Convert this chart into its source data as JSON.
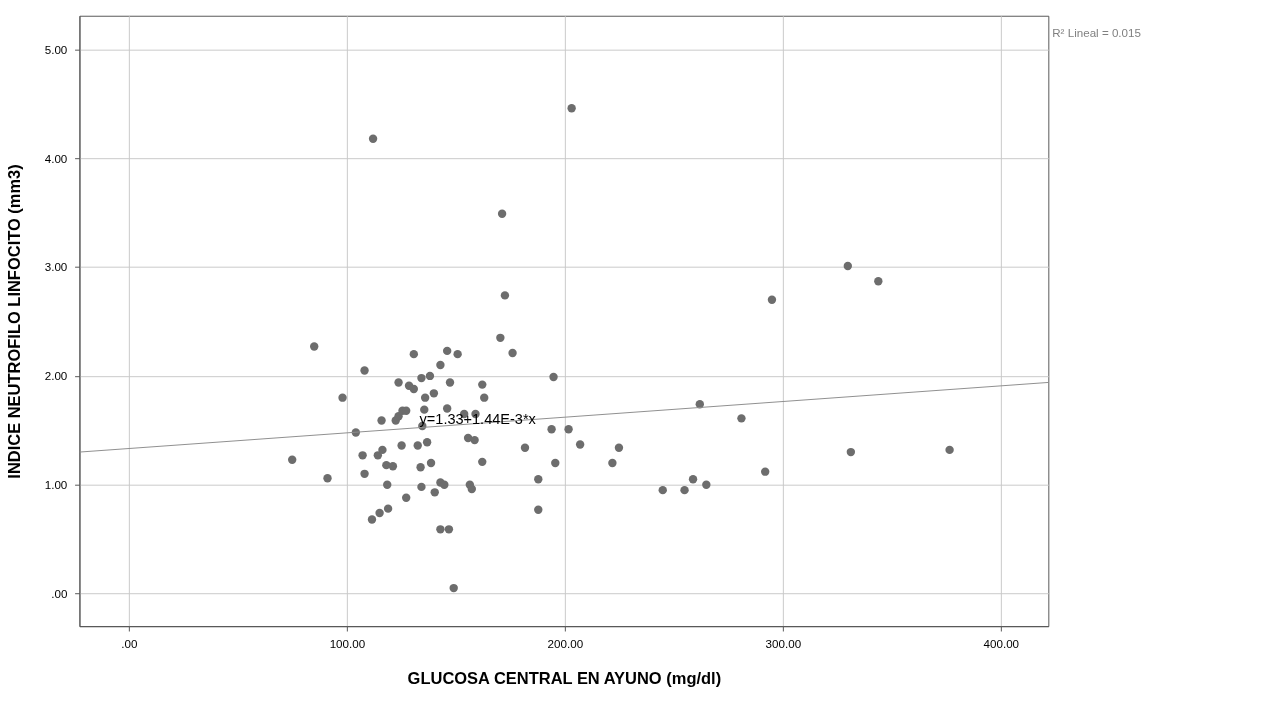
{
  "chart_data": {
    "type": "scatter",
    "xlabel": "GLUCOSA CENTRAL EN AYUNO (mg/dl)",
    "ylabel": "INDICE NEUTROFILO LINFOCITO (mm3)",
    "xlim": [
      -22.7,
      421.8
    ],
    "ylim": [
      -0.3,
      5.31
    ],
    "xticks": [
      {
        "value": 0,
        "label": ".00"
      },
      {
        "value": 100,
        "label": "100.00"
      },
      {
        "value": 200,
        "label": "200.00"
      },
      {
        "value": 300,
        "label": "300.00"
      },
      {
        "value": 400,
        "label": "400.00"
      }
    ],
    "yticks": [
      {
        "value": 0,
        "label": ".00"
      },
      {
        "value": 1,
        "label": "1.00"
      },
      {
        "value": 2,
        "label": "2.00"
      },
      {
        "value": 3,
        "label": "3.00"
      },
      {
        "value": 4,
        "label": "4.00"
      },
      {
        "value": 5,
        "label": "5.00"
      }
    ],
    "grid": true,
    "series": [
      {
        "color": "#6d6d6d",
        "marker": "circle",
        "x": [
          74.9,
          85.0,
          91.1,
          98.0,
          104.1,
          107.2,
          108.1,
          108.1,
          111.5,
          112.0,
          114.2,
          115.0,
          115.9,
          116.3,
          118.1,
          118.5,
          118.9,
          121.1,
          122.4,
          123.7,
          123.7,
          125.1,
          125.5,
          127.2,
          127.2,
          128.5,
          130.7,
          130.7,
          132.5,
          133.8,
          134.2,
          134.2,
          134.6,
          135.5,
          135.9,
          136.8,
          138.1,
          138.6,
          139.9,
          140.3,
          142.9,
          142.9,
          142.9,
          144.7,
          146.0,
          146.0,
          147.3,
          146.8,
          149.0,
          150.8,
          153.8,
          155.6,
          156.4,
          157.3,
          158.6,
          159.0,
          162.1,
          162.1,
          163.0,
          170.4,
          171.2,
          172.5,
          176.0,
          181.7,
          187.8,
          187.8,
          193.9,
          194.8,
          195.6,
          201.7,
          203.1,
          207.0,
          221.8,
          224.8,
          244.9,
          254.9,
          258.8,
          261.9,
          264.9,
          281.0,
          291.9,
          295.0,
          329.8,
          331.2,
          343.8,
          376.5
        ],
        "values": [
          1.23,
          2.27,
          1.06,
          1.8,
          1.48,
          1.27,
          2.05,
          1.1,
          0.68,
          4.18,
          1.27,
          0.74,
          1.59,
          1.32,
          1.18,
          1.0,
          0.78,
          1.17,
          1.59,
          1.94,
          1.63,
          1.36,
          1.68,
          1.68,
          0.88,
          1.91,
          2.2,
          1.88,
          1.36,
          1.16,
          1.98,
          0.98,
          1.54,
          1.69,
          1.8,
          1.39,
          2.0,
          1.2,
          1.84,
          0.93,
          2.1,
          1.02,
          0.59,
          1.0,
          2.23,
          1.7,
          1.94,
          0.59,
          0.05,
          2.2,
          1.65,
          1.43,
          1.0,
          0.96,
          1.41,
          1.65,
          1.21,
          1.92,
          1.8,
          2.35,
          3.49,
          2.74,
          2.21,
          1.34,
          1.05,
          0.77,
          1.51,
          1.99,
          1.2,
          1.51,
          4.46,
          1.37,
          1.2,
          1.34,
          0.95,
          0.95,
          1.05,
          1.74,
          1.0,
          1.61,
          1.12,
          2.7,
          3.01,
          1.3,
          2.87,
          1.32
        ]
      },
      {
        "type": "line",
        "color": "#8c8c8c",
        "line_style": "solid",
        "x": [
          -22.7,
          421.8
        ],
        "values": [
          1.3,
          1.94
        ]
      }
    ],
    "annotations": [
      {
        "text": "y=1.33+1.44E-3*x",
        "x": 160,
        "y": 1.6
      },
      "R² Lineal = 0.015"
    ]
  }
}
